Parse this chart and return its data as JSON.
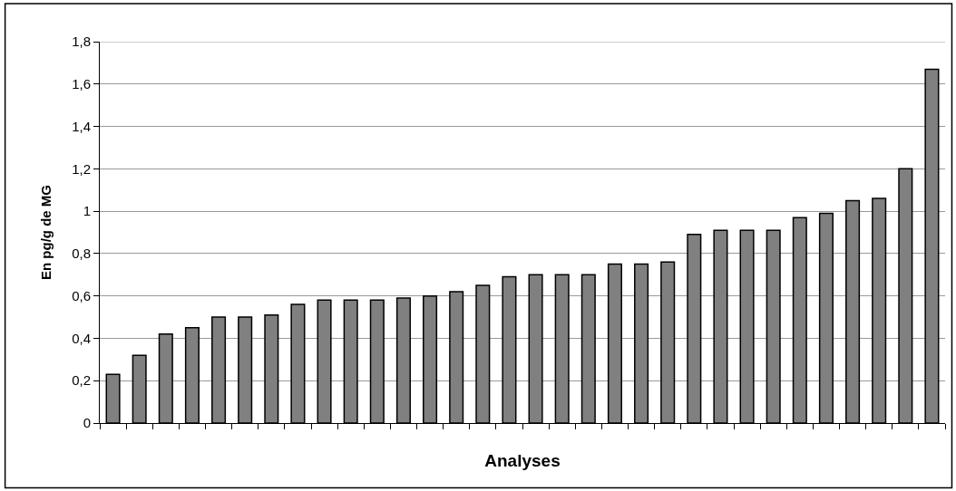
{
  "chart_data": {
    "type": "bar",
    "xlabel": "Analyses",
    "ylabel": "En pg/g de MG",
    "categories": [
      null,
      null,
      null,
      null,
      null,
      null,
      null,
      null,
      null,
      null,
      null,
      null,
      null,
      null,
      null,
      null,
      null,
      null,
      null,
      null,
      null,
      null,
      null,
      null,
      null,
      null,
      null,
      null,
      null,
      null,
      null,
      null
    ],
    "values": [
      0.23,
      0.32,
      0.42,
      0.45,
      0.5,
      0.5,
      0.51,
      0.56,
      0.58,
      0.58,
      0.58,
      0.59,
      0.6,
      0.62,
      0.65,
      0.69,
      0.7,
      0.7,
      0.7,
      0.75,
      0.75,
      0.76,
      0.89,
      0.91,
      0.91,
      0.91,
      0.97,
      0.99,
      1.05,
      1.06,
      1.2,
      1.67
    ],
    "color": "#808080",
    "ylim": [
      0,
      1.8
    ],
    "yticks": [
      {
        "value": 0,
        "label": "0"
      },
      {
        "value": 0.2,
        "label": "0,2"
      },
      {
        "value": 0.4,
        "label": "0,4"
      },
      {
        "value": 0.6,
        "label": "0,6"
      },
      {
        "value": 0.8,
        "label": "0,8"
      },
      {
        "value": 1,
        "label": "1"
      },
      {
        "value": 1.2,
        "label": "1,2"
      },
      {
        "value": 1.4,
        "label": "1,4"
      },
      {
        "value": 1.6,
        "label": "1,6"
      },
      {
        "value": 1.8,
        "label": "1,8"
      }
    ],
    "grid": "y",
    "legend": false
  }
}
